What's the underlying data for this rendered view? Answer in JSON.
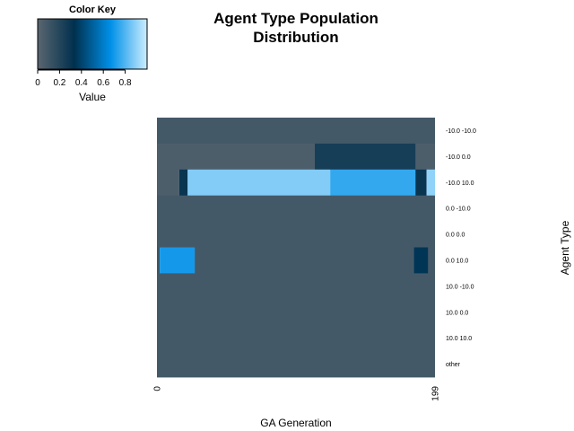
{
  "chart_data": {
    "type": "heatmap",
    "title_lines": [
      "Agent Type Population",
      "Distribution"
    ],
    "xlabel": "GA Generation",
    "ylabel": "Agent Type",
    "x_tick_labels": [
      "0",
      "199"
    ],
    "x_range": [
      0,
      199
    ],
    "rows": [
      {
        "label": "-10.0 -10.0",
        "segments": [
          {
            "from": 0,
            "to": 199,
            "value": 0.08
          }
        ]
      },
      {
        "label": "-10.0 0.0",
        "segments": [
          {
            "from": 0,
            "to": 199,
            "value": 0.05
          },
          {
            "from": 113,
            "to": 185,
            "value": 0.25
          }
        ]
      },
      {
        "label": "-10.0 10.0",
        "segments": [
          {
            "from": 0,
            "to": 16,
            "value": 0.05
          },
          {
            "from": 16,
            "to": 22,
            "value": 0.3
          },
          {
            "from": 22,
            "to": 124,
            "value": 0.88
          },
          {
            "from": 124,
            "to": 185,
            "value": 0.75
          },
          {
            "from": 185,
            "to": 193,
            "value": 0.3
          },
          {
            "from": 193,
            "to": 199,
            "value": 0.9
          }
        ]
      },
      {
        "label": "0.0 -10.0",
        "segments": [
          {
            "from": 0,
            "to": 199,
            "value": 0.08
          }
        ]
      },
      {
        "label": "0.0 0.0",
        "segments": [
          {
            "from": 0,
            "to": 199,
            "value": 0.08
          }
        ]
      },
      {
        "label": "0.0 10.0",
        "segments": [
          {
            "from": 0,
            "to": 2,
            "value": 0.1
          },
          {
            "from": 2,
            "to": 27,
            "value": 0.7
          },
          {
            "from": 27,
            "to": 199,
            "value": 0.08
          },
          {
            "from": 184,
            "to": 194,
            "value": 0.35
          }
        ]
      },
      {
        "label": "10.0 -10.0",
        "segments": [
          {
            "from": 0,
            "to": 199,
            "value": 0.08
          }
        ]
      },
      {
        "label": "10.0 0.0",
        "segments": [
          {
            "from": 0,
            "to": 199,
            "value": 0.08
          }
        ]
      },
      {
        "label": "10.0 10.0",
        "segments": [
          {
            "from": 0,
            "to": 199,
            "value": 0.08
          }
        ]
      },
      {
        "label": "other",
        "segments": [
          {
            "from": 0,
            "to": 199,
            "value": 0.08
          }
        ]
      }
    ],
    "color_key": {
      "title": "Color Key",
      "xlabel": "Value",
      "range": [
        0,
        1
      ],
      "ticks": [
        0,
        0.2,
        0.4,
        0.6,
        0.8
      ],
      "tick_labels": [
        "0",
        "0.2",
        "0.4",
        "0.6",
        "0.8"
      ],
      "colors": [
        "#5a6670",
        "#00304e",
        "#0090e8",
        "#cdeeff"
      ]
    }
  }
}
